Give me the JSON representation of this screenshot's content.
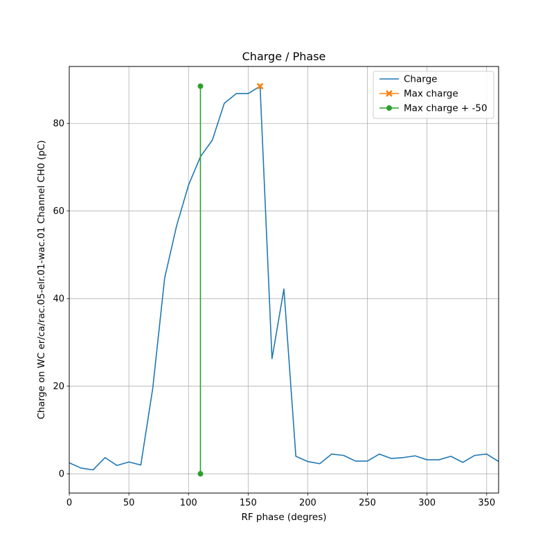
{
  "chart_data": {
    "type": "line",
    "title": "Charge / Phase",
    "xlabel": "RF phase (degres)",
    "ylabel": "Charge on WC er/ca/rac.05-elr.01-wac.01 Channel CH0 (pC)",
    "xlim": [
      0,
      360
    ],
    "ylim": [
      -4.4,
      93
    ],
    "xticks": [
      0,
      50,
      100,
      150,
      200,
      250,
      300,
      350
    ],
    "yticks": [
      0,
      20,
      40,
      60,
      80
    ],
    "grid": true,
    "legend_position": "top-right",
    "series": [
      {
        "name": "Charge",
        "color": "#1f77b4",
        "marker": "none",
        "x": [
          0,
          10,
          20,
          30,
          40,
          50,
          60,
          70,
          80,
          90,
          100,
          110,
          120,
          130,
          140,
          150,
          160,
          170,
          180,
          190,
          200,
          210,
          220,
          230,
          240,
          250,
          260,
          270,
          280,
          290,
          300,
          310,
          320,
          330,
          340,
          350,
          360
        ],
        "y": [
          2.5,
          1.3,
          0.9,
          3.7,
          1.9,
          2.7,
          2.0,
          19.5,
          44.7,
          56.6,
          65.9,
          72.4,
          76.2,
          84.6,
          86.8,
          86.8,
          88.5,
          26.3,
          42.2,
          4.0,
          2.8,
          2.3,
          4.5,
          4.2,
          2.9,
          2.9,
          4.5,
          3.5,
          3.7,
          4.1,
          3.2,
          3.2,
          4.0,
          2.6,
          4.2,
          4.5,
          2.8
        ]
      },
      {
        "name": "Max charge",
        "color": "#ff7f0e",
        "marker": "x",
        "x": [
          160
        ],
        "y": [
          88.5
        ]
      },
      {
        "name": "Max charge + -50",
        "color": "#2ca02c",
        "marker": "o",
        "x": [
          110,
          110
        ],
        "y": [
          0,
          88.5
        ]
      }
    ]
  }
}
